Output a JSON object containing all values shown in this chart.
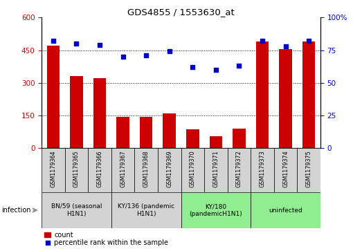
{
  "title": "GDS4855 / 1553630_at",
  "samples": [
    "GSM1179364",
    "GSM1179365",
    "GSM1179366",
    "GSM1179367",
    "GSM1179368",
    "GSM1179369",
    "GSM1179370",
    "GSM1179371",
    "GSM1179372",
    "GSM1179373",
    "GSM1179374",
    "GSM1179375"
  ],
  "counts": [
    470,
    330,
    320,
    145,
    143,
    160,
    85,
    55,
    90,
    490,
    455,
    490
  ],
  "percentiles": [
    82,
    80,
    79,
    70,
    71,
    74,
    62,
    60,
    63,
    82,
    78,
    82
  ],
  "bar_color": "#cc0000",
  "dot_color": "#0000cc",
  "left_yticks": [
    0,
    150,
    300,
    450,
    600
  ],
  "left_ylim": [
    0,
    600
  ],
  "right_yticks": [
    0,
    25,
    50,
    75,
    100
  ],
  "right_ylim": [
    0,
    100
  ],
  "right_tick_color": "#0000cc",
  "left_tick_color": "#cc0000",
  "groups": [
    {
      "label": "BN/59 (seasonal\nH1N1)",
      "start": 0,
      "end": 3,
      "color": "#d3d3d3"
    },
    {
      "label": "KY/136 (pandemic\nH1N1)",
      "start": 3,
      "end": 6,
      "color": "#d3d3d3"
    },
    {
      "label": "KY/180\n(pandemicH1N1)",
      "start": 6,
      "end": 9,
      "color": "#90ee90"
    },
    {
      "label": "uninfected",
      "start": 9,
      "end": 12,
      "color": "#90ee90"
    }
  ],
  "infection_label": "infection",
  "legend_count_label": "count",
  "legend_percentile_label": "percentile rank within the sample",
  "tick_area_color": "#d3d3d3",
  "grid_lines": [
    150,
    300,
    450
  ],
  "bar_width": 0.55
}
